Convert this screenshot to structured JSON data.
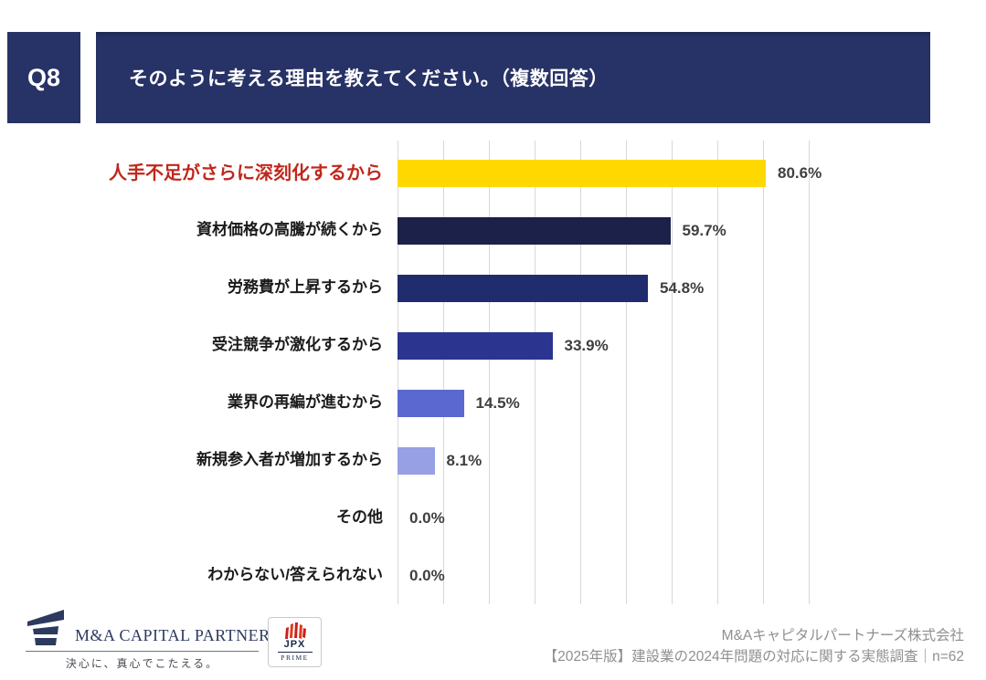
{
  "header": {
    "question_no": "Q8",
    "title": "そのように考える理由を教えてください。（複数回答）"
  },
  "chart_data": {
    "type": "bar",
    "orientation": "horizontal",
    "title": "そのように考える理由を教えてください。（複数回答）",
    "xlabel": "",
    "ylabel": "",
    "xlim": [
      0,
      90
    ],
    "gridline_interval": 10,
    "grid": true,
    "legend": false,
    "categories": [
      "人手不足がさらに深刻化するから",
      "資材価格の高騰が続くから",
      "労務費が上昇するから",
      "受注競争が激化するから",
      "業界の再編が進むから",
      "新規参入者が増加するから",
      "その他",
      "わからない/答えられない"
    ],
    "values": [
      80.6,
      59.7,
      54.8,
      33.9,
      14.5,
      8.1,
      0.0,
      0.0
    ],
    "highlight_color": "#c0271c",
    "gridline_color": "#d8d8d8",
    "rows": [
      {
        "label": "人手不足がさらに深刻化するから",
        "value": 80.6,
        "value_label": "80.6%",
        "color": "#ffd800",
        "highlighted": true
      },
      {
        "label": "資材価格の高騰が続くから",
        "value": 59.7,
        "value_label": "59.7%",
        "color": "#1b2148",
        "highlighted": false
      },
      {
        "label": "労務費が上昇するから",
        "value": 54.8,
        "value_label": "54.8%",
        "color": "#212c6e",
        "highlighted": false
      },
      {
        "label": "受注競争が激化するから",
        "value": 33.9,
        "value_label": "33.9%",
        "color": "#2b3590",
        "highlighted": false
      },
      {
        "label": "業界の再編が進むから",
        "value": 14.5,
        "value_label": "14.5%",
        "color": "#5a68d0",
        "highlighted": false
      },
      {
        "label": "新規参入者が増加するから",
        "value": 8.1,
        "value_label": "8.1%",
        "color": "#97a0e4",
        "highlighted": false
      },
      {
        "label": "その他",
        "value": 0.0,
        "value_label": "0.0%",
        "color": null,
        "highlighted": false
      },
      {
        "label": "わからない/答えられない",
        "value": 0.0,
        "value_label": "0.0%",
        "color": null,
        "highlighted": false
      }
    ]
  },
  "footer": {
    "company_logo_text": "M&A CAPITAL PARTNERS",
    "company_tagline": "決心に、真心でこたえる。",
    "jpx_name": "JPX",
    "jpx_sub": "PRIME",
    "credit_line1": "M&Aキャピタルパートナーズ株式会社",
    "credit_line2": "【2025年版】建設業の2024年問題の対応に関する実態調査｜n=62"
  }
}
